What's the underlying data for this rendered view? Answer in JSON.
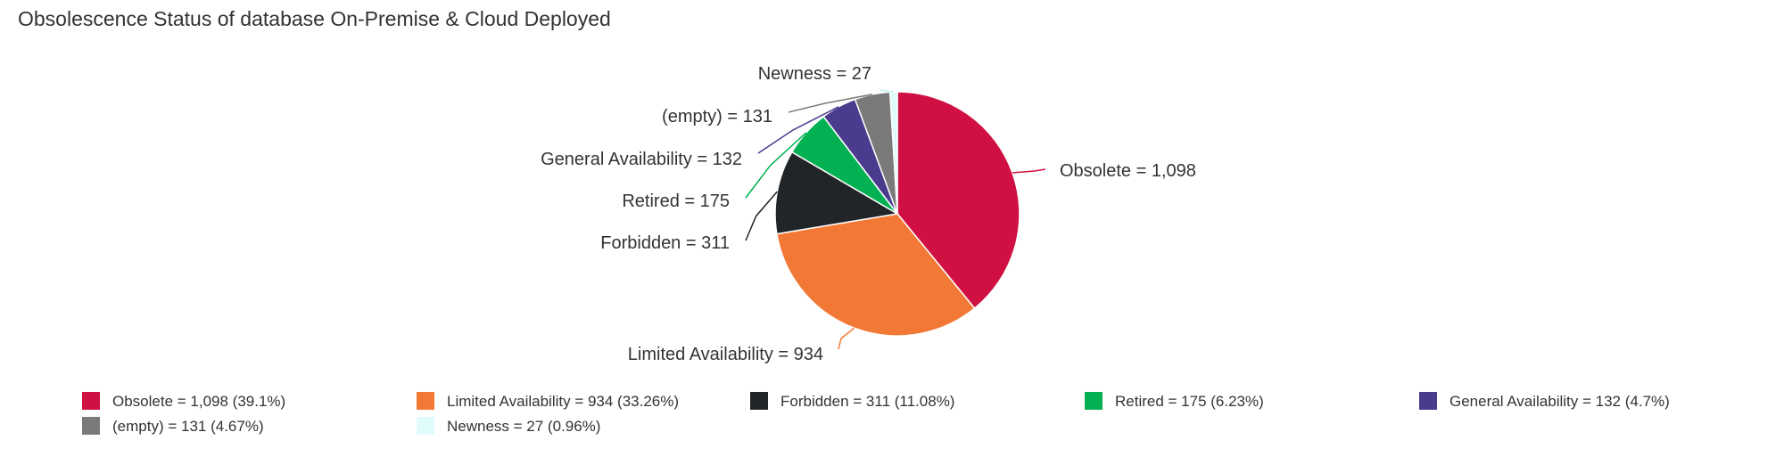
{
  "chart_data": {
    "type": "pie",
    "title": "Obsolescence Status of database On-Premise & Cloud Deployed",
    "slices": [
      {
        "label": "Obsolete",
        "value": 1098,
        "value_text": "1,098",
        "percent": "39.1%",
        "color": "#d01042"
      },
      {
        "label": "Limited Availability",
        "value": 934,
        "value_text": "934",
        "percent": "33.26%",
        "color": "#f27935"
      },
      {
        "label": "Forbidden",
        "value": 311,
        "value_text": "311",
        "percent": "11.08%",
        "color": "#222528"
      },
      {
        "label": "Retired",
        "value": 175,
        "value_text": "175",
        "percent": "6.23%",
        "color": "#03b153"
      },
      {
        "label": "General Availability",
        "value": 132,
        "value_text": "132",
        "percent": "4.7%",
        "color": "#4b3b8f"
      },
      {
        "label": "(empty)",
        "value": 131,
        "value_text": "131",
        "percent": "4.67%",
        "color": "#7a7a7a"
      },
      {
        "label": "Newness",
        "value": 27,
        "value_text": "27",
        "percent": "0.96%",
        "color": "#dffcfb"
      }
    ],
    "legend_position": "bottom"
  }
}
